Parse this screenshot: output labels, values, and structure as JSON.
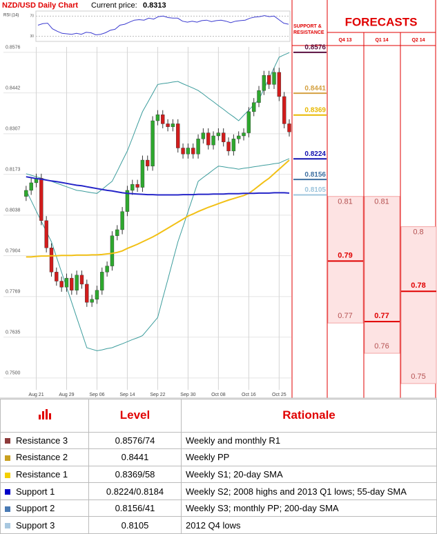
{
  "chart_data": [
    {
      "type": "candlestick",
      "title": "NZD/USD Daily Chart",
      "price_label": "Current price:",
      "price": 0.8313,
      "categories": [
        null,
        null,
        "Aug 21",
        null,
        null,
        null,
        null,
        null,
        "Aug 29",
        null,
        null,
        null,
        null,
        null,
        "Sep 06",
        null,
        null,
        null,
        null,
        null,
        "Sep 14",
        null,
        null,
        null,
        null,
        null,
        "Sep 22",
        null,
        null,
        null,
        null,
        null,
        "Sep 30",
        null,
        null,
        null,
        null,
        null,
        "Oct 08",
        null,
        null,
        null,
        null,
        null,
        "Oct 16",
        null,
        null,
        null,
        null,
        null,
        "Oct 25",
        null,
        null
      ],
      "open": [
        0.81,
        0.812,
        0.8145,
        0.816,
        0.802,
        0.793,
        0.785,
        0.782,
        0.78,
        0.783,
        0.779,
        0.784,
        0.781,
        0.775,
        0.776,
        0.779,
        0.785,
        0.787,
        0.797,
        0.799,
        0.805,
        0.812,
        0.814,
        0.813,
        0.822,
        0.82,
        0.835,
        0.837,
        0.834,
        0.833,
        0.834,
        0.826,
        0.824,
        0.826,
        0.824,
        0.829,
        0.831,
        0.827,
        0.83,
        0.831,
        0.828,
        0.825,
        0.829,
        0.83,
        0.831,
        0.838,
        0.841,
        0.845,
        0.85,
        0.847,
        0.851,
        0.843,
        0.834
      ],
      "high": [
        0.8135,
        0.816,
        0.8175,
        0.8175,
        0.8035,
        0.7945,
        0.7865,
        0.7835,
        0.7845,
        0.7845,
        0.7855,
        0.7855,
        0.7825,
        0.7775,
        0.7805,
        0.7865,
        0.7885,
        0.7985,
        0.8005,
        0.8065,
        0.8135,
        0.8155,
        0.8155,
        0.8235,
        0.8235,
        0.8365,
        0.8385,
        0.8385,
        0.8355,
        0.8355,
        0.8355,
        0.8275,
        0.8275,
        0.8275,
        0.8305,
        0.8325,
        0.8325,
        0.8315,
        0.8325,
        0.8325,
        0.8295,
        0.8305,
        0.8315,
        0.8325,
        0.8395,
        0.8425,
        0.8465,
        0.8515,
        0.8515,
        0.8525,
        0.8525,
        0.8445,
        0.8355
      ],
      "low": [
        0.8085,
        0.8105,
        0.813,
        0.8005,
        0.7915,
        0.7835,
        0.7805,
        0.7785,
        0.7785,
        0.7775,
        0.7775,
        0.7795,
        0.7735,
        0.7735,
        0.7745,
        0.7775,
        0.7835,
        0.7855,
        0.7955,
        0.7975,
        0.8035,
        0.8105,
        0.8115,
        0.8115,
        0.8185,
        0.8185,
        0.8335,
        0.8325,
        0.8315,
        0.8315,
        0.8245,
        0.8225,
        0.8225,
        0.8225,
        0.8225,
        0.8275,
        0.8255,
        0.8255,
        0.8285,
        0.8265,
        0.8235,
        0.8235,
        0.8275,
        0.8285,
        0.8295,
        0.8365,
        0.8395,
        0.8435,
        0.8455,
        0.8455,
        0.8415,
        0.8325,
        0.8298
      ],
      "close": [
        0.812,
        0.8145,
        0.816,
        0.802,
        0.793,
        0.785,
        0.782,
        0.78,
        0.783,
        0.779,
        0.784,
        0.781,
        0.775,
        0.776,
        0.779,
        0.785,
        0.787,
        0.797,
        0.799,
        0.805,
        0.812,
        0.814,
        0.813,
        0.822,
        0.82,
        0.835,
        0.837,
        0.834,
        0.833,
        0.834,
        0.826,
        0.824,
        0.826,
        0.824,
        0.829,
        0.831,
        0.827,
        0.83,
        0.831,
        0.828,
        0.825,
        0.829,
        0.83,
        0.831,
        0.838,
        0.841,
        0.845,
        0.85,
        0.847,
        0.851,
        0.843,
        0.834,
        0.8313
      ],
      "up_color": "#2ea82e",
      "down_color": "#d11c1c",
      "lines": [
        {
          "color": "#3b9c9c",
          "width": 1,
          "values": [
            0.8175,
            0.817,
            0.8165,
            0.816,
            0.8155,
            0.815,
            0.8144,
            0.8138,
            0.8132,
            0.8126,
            0.812,
            0.8118,
            0.8115,
            0.8112,
            0.811,
            0.8123,
            0.8137,
            0.815,
            0.8183,
            0.8217,
            0.825,
            0.8293,
            0.8337,
            0.838,
            0.841,
            0.844,
            0.847,
            0.8473,
            0.8475,
            0.8478,
            0.848,
            0.8472,
            0.8465,
            0.8458,
            0.845,
            0.8438,
            0.8425,
            0.8413,
            0.84,
            0.8388,
            0.8375,
            0.8363,
            0.835,
            0.8368,
            0.8385,
            0.8403,
            0.842,
            0.8455,
            0.849,
            0.8525,
            0.856,
            0.8568,
            0.8575
          ]
        },
        {
          "color": "#3b9c9c",
          "width": 1,
          "values": [
            0.812,
            0.8086,
            0.8052,
            0.8018,
            0.7984,
            0.795,
            0.79,
            0.785,
            0.78,
            0.775,
            0.77,
            0.765,
            0.76,
            0.7595,
            0.759,
            0.7593,
            0.7597,
            0.76,
            0.7607,
            0.7613,
            0.762,
            0.7627,
            0.7633,
            0.764,
            0.766,
            0.768,
            0.77,
            0.7763,
            0.7825,
            0.7888,
            0.795,
            0.8,
            0.805,
            0.81,
            0.815,
            0.8163,
            0.8175,
            0.8188,
            0.82,
            0.8198,
            0.8195,
            0.8193,
            0.819,
            0.8193,
            0.8195,
            0.8198,
            0.82,
            0.8203,
            0.8205,
            0.8208,
            0.821,
            0.8218,
            0.8225
          ]
        },
        {
          "color": "#f2c014",
          "width": 2,
          "values": [
            0.79,
            0.79,
            0.7902,
            0.7903,
            0.7903,
            0.7904,
            0.7904,
            0.7905,
            0.7905,
            0.7905,
            0.7906,
            0.7906,
            0.7906,
            0.7907,
            0.7907,
            0.7908,
            0.791,
            0.7912,
            0.7915,
            0.792,
            0.7928,
            0.7935,
            0.7942,
            0.795,
            0.7958,
            0.7966,
            0.7975,
            0.7985,
            0.7995,
            0.8005,
            0.8015,
            0.8025,
            0.8035,
            0.8042,
            0.805,
            0.8057,
            0.8064,
            0.807,
            0.8076,
            0.8082,
            0.8088,
            0.8093,
            0.8098,
            0.8103,
            0.811,
            0.8122,
            0.8135,
            0.8148,
            0.816,
            0.8175,
            0.819,
            0.8205,
            0.822
          ]
        },
        {
          "color": "#2424c8",
          "width": 2,
          "values": [
            0.8165,
            0.8162,
            0.8159,
            0.8157,
            0.8154,
            0.8151,
            0.8149,
            0.8146,
            0.8143,
            0.814,
            0.8137,
            0.8135,
            0.8132,
            0.8129,
            0.8126,
            0.8123,
            0.812,
            0.8118,
            0.8115,
            0.8112,
            0.811,
            0.8109,
            0.8108,
            0.8107,
            0.8106,
            0.8106,
            0.8105,
            0.8105,
            0.8105,
            0.8105,
            0.8105,
            0.8106,
            0.8106,
            0.8106,
            0.8107,
            0.8107,
            0.8107,
            0.8108,
            0.8108,
            0.8108,
            0.8109,
            0.8109,
            0.8109,
            0.811,
            0.811,
            0.811,
            0.8111,
            0.8111,
            0.8111,
            0.8112,
            0.8112,
            0.8112,
            0.8111
          ]
        }
      ],
      "ylim": [
        0.7461,
        0.8594
      ],
      "yticks": [
        0.8576,
        0.8442,
        0.8307,
        0.8173,
        0.8038,
        0.7904,
        0.7769,
        0.7635,
        {
          "value": 0.75,
          "label": "0.7500"
        }
      ],
      "grid": true,
      "levels_title": "SUPPORT & RESISTANCE",
      "levels": [
        {
          "value": 0.8576,
          "color": "#5a1040"
        },
        {
          "value": 0.8441,
          "color": "#d4a040"
        },
        {
          "value": 0.8369,
          "color": "#e8b800"
        },
        {
          "value": 0.8224,
          "color": "#1010b0"
        },
        {
          "value": 0.8156,
          "color": "#3d6fa0"
        },
        {
          "value": 0.8105,
          "color": "#9cc4dc"
        }
      ]
    },
    {
      "type": "line",
      "title": "RSI (14)",
      "color": "#3a3ad0",
      "values": [
        52,
        55,
        56,
        45,
        40,
        36,
        35,
        34,
        36,
        34,
        38,
        37,
        33,
        34,
        37,
        42,
        44,
        52,
        54,
        58,
        62,
        63,
        62,
        66,
        64,
        69,
        70,
        67,
        66,
        66,
        60,
        58,
        60,
        58,
        61,
        62,
        59,
        61,
        62,
        60,
        57,
        60,
        61,
        62,
        66,
        68,
        69,
        71,
        69,
        70,
        63,
        56,
        54
      ],
      "ylim": [
        20,
        80
      ],
      "yticks": [
        70,
        30
      ]
    },
    {
      "type": "range",
      "title": "FORECASTS",
      "categories": [
        "Q4 13",
        "Q1 14",
        "Q2 14"
      ],
      "high": [
        0.81,
        0.81,
        0.8
      ],
      "median": [
        0.79,
        0.77,
        0.78
      ],
      "low": [
        0.77,
        0.76,
        0.75
      ],
      "ylim": [
        0.7461,
        0.8594
      ],
      "color": "#e00000"
    }
  ],
  "table": {
    "header": [
      "Level",
      "Rationale"
    ],
    "rows": [
      {
        "name": "Resistance 3",
        "color": "#8e3b3b",
        "level": "0.8576/74",
        "rationale": "Weekly and monthly R1"
      },
      {
        "name": "Resistance 2",
        "color": "#c9a020",
        "level": "0.8441",
        "rationale": "Weekly PP"
      },
      {
        "name": "Resistance 1",
        "color": "#f4d000",
        "level": "0.8369/58",
        "rationale": "Weekly S1; 20-day SMA"
      },
      {
        "name": "Support 1",
        "color": "#0000c8",
        "level": "0.8224/0.8184",
        "rationale": "Weekly S2; 2008 highs and 2013 Q1 lows; 55-day SMA"
      },
      {
        "name": "Support 2",
        "color": "#4a7ab4",
        "level": "0.8156/41",
        "rationale": "Weekly S3; monthly PP; 200-day SMA"
      },
      {
        "name": "Support 3",
        "color": "#a8c8e0",
        "level": "0.8105",
        "rationale": "2012 Q4 lows"
      }
    ]
  }
}
